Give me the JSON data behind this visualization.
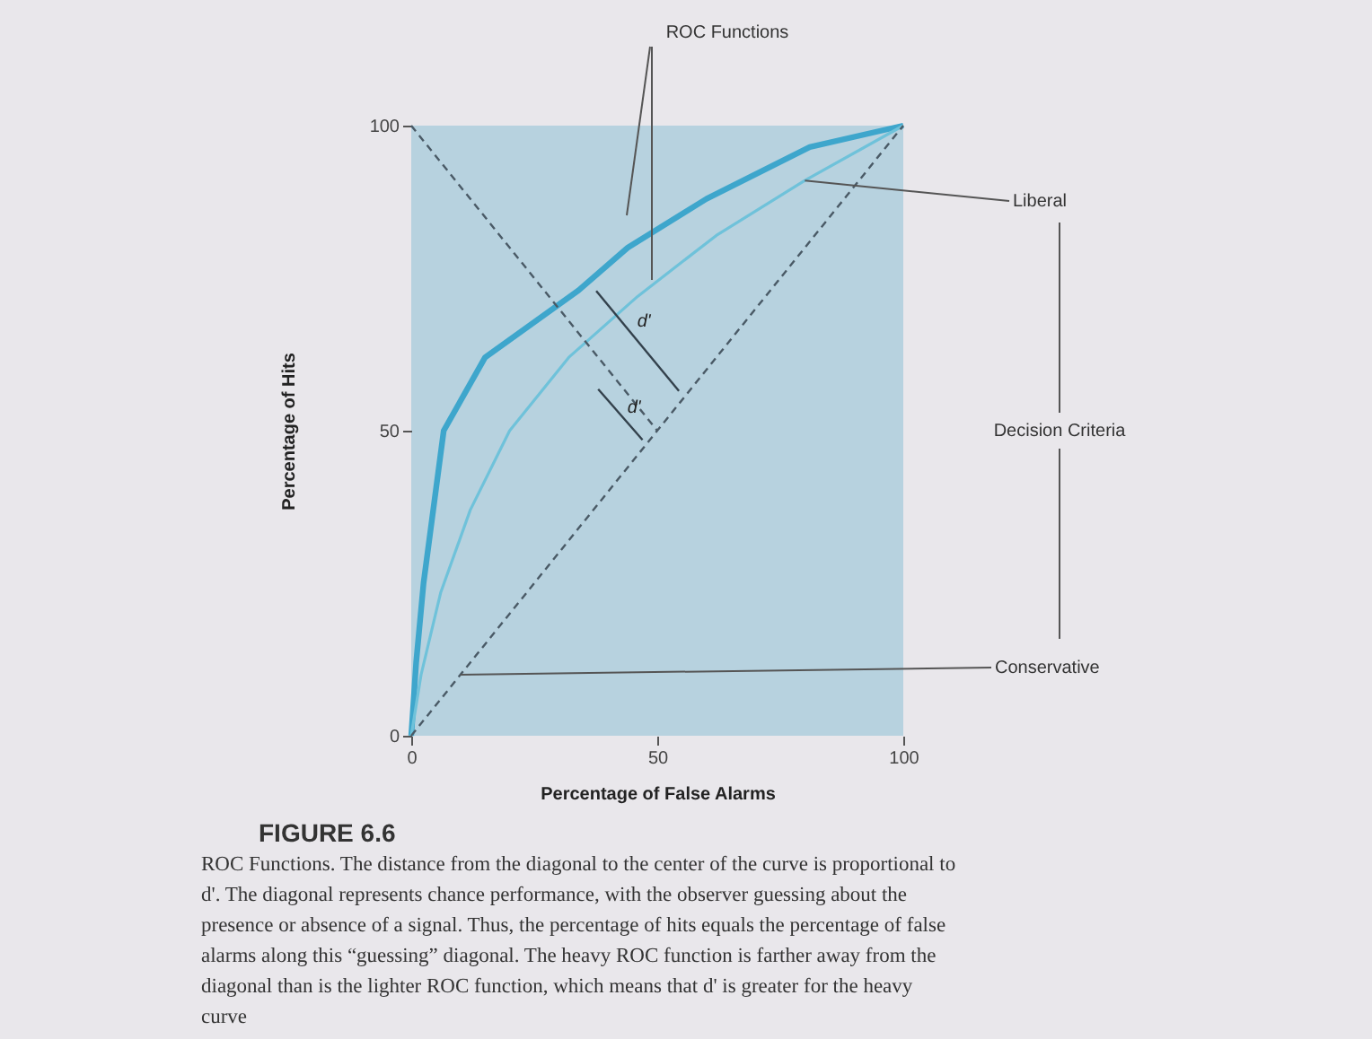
{
  "chart_data": {
    "type": "line",
    "xlabel": "Percentage of False Alarms",
    "ylabel": "Percentage of Hits",
    "xlim": [
      0,
      100
    ],
    "ylim": [
      0,
      100
    ],
    "xticks": [
      0,
      50,
      100
    ],
    "yticks": [
      0,
      50,
      100
    ],
    "grid": false,
    "marker": "none",
    "series": [
      {
        "color": "#3ea6cc",
        "line_style": "solid",
        "x": [
          0,
          1,
          2.5,
          6.6,
          15,
          34,
          44,
          60,
          81,
          100
        ],
        "values": [
          0,
          12,
          25,
          50,
          62,
          73,
          80,
          88,
          96.5,
          100
        ]
      },
      {
        "color": "#6fc2da",
        "line_style": "solid",
        "x": [
          0,
          2,
          6,
          12,
          20,
          32,
          46,
          62,
          80,
          100
        ],
        "values": [
          0,
          10,
          23.5,
          37,
          50,
          62,
          72,
          82,
          91,
          100
        ]
      },
      {
        "color": "#4a5a66",
        "line_style": "dashed",
        "x": [
          0,
          100
        ],
        "values": [
          0,
          100
        ]
      },
      {
        "color": "#4a5a66",
        "line_style": "dashed",
        "x": [
          0,
          50
        ],
        "values": [
          100,
          50
        ]
      },
      {
        "color": "#33414c",
        "line_style": "solid",
        "x": [
          37.6,
          54.4
        ],
        "values": [
          72.9,
          56.5
        ]
      },
      {
        "color": "#33414c",
        "line_style": "solid",
        "x": [
          38,
          47
        ],
        "values": [
          56.8,
          48.5
        ]
      }
    ],
    "annotations": [
      "ROC Functions",
      {
        "text": "Liberal",
        "x": 80,
        "y": 91
      },
      "Decision Criteria",
      {
        "text": "Conservative",
        "x": 10,
        "y": 10
      },
      {
        "text": "d'",
        "x": 44,
        "y": 67
      },
      {
        "text": "d'",
        "x": 42,
        "y": 53
      },
      "FIGURE 6.6",
      "ROC Functions. The distance from the diagonal to the center of the curve is proportional to d'. The diagonal represents chance performance, with the observer guessing about the presence or absence of a signal. Thus, the percentage of hits equals the percentage of false alarms along this “guessing” diagonal. The heavy ROC function is farther away from the diagonal than is the lighter ROC function, which means that d' is greater for the heavy curve"
    ]
  }
}
